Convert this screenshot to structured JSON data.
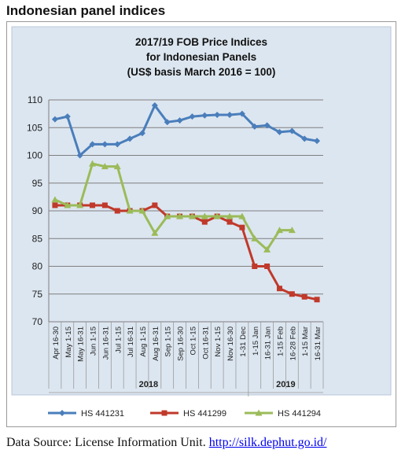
{
  "page_heading": "Indonesian panel indices",
  "source": {
    "label": "Data Source: License Information Unit.",
    "url_text": "http://silk.dephut.go.id/"
  },
  "chart_data": {
    "type": "line",
    "title_lines": [
      "2017/19 FOB Price Indices",
      "for Indonesian Panels",
      "(US$ basis March 2016 = 100)"
    ],
    "categories": [
      "Apr 16-30",
      "May 1-15",
      "May 16-31",
      "Jun 1-15",
      "Jun 16-31",
      "Jul 1-15",
      "Jul 16-31",
      "Aug 1-15",
      "Aug 16-31",
      "Sep 1-15",
      "Sep 16-30",
      "Oct 1-15",
      "Oct 16-31",
      "Nov 1-15",
      "Nov 16-30",
      "1-31 Dec",
      "1-15 Jan",
      "16-31 Jan",
      "1-15 Feb",
      "16-28 Feb",
      "1-15 Mar",
      "16-31 Mar"
    ],
    "year_groups": [
      {
        "label": "2018",
        "start": 0,
        "end": 15
      },
      {
        "label": "2019",
        "start": 16,
        "end": 21
      }
    ],
    "ylim": [
      70,
      110
    ],
    "yticks": [
      70,
      75,
      80,
      85,
      90,
      95,
      100,
      105,
      110
    ],
    "grid": "horizontal",
    "legend_position": "bottom",
    "colors": {
      "HS 441231": "#4a7ebb",
      "HS 441299": "#c0392b",
      "HS 441294": "#9bbb59"
    },
    "series": [
      {
        "name": "HS 441231",
        "marker": "diamond",
        "values": [
          106.5,
          107,
          100,
          102,
          102,
          102,
          103,
          104,
          109,
          106,
          106.3,
          107,
          107.2,
          107.3,
          107.3,
          107.5,
          105.2,
          105.4,
          104.2,
          104.4,
          103,
          102.6
        ]
      },
      {
        "name": "HS 441299",
        "marker": "square",
        "values": [
          91,
          91,
          91,
          91,
          91,
          90,
          90,
          90,
          91,
          89,
          89,
          89,
          88,
          89,
          88,
          87,
          80,
          80,
          76,
          75,
          74.5,
          74
        ]
      },
      {
        "name": "HS 441294",
        "marker": "triangle",
        "values": [
          92,
          91,
          91,
          98.5,
          98,
          98,
          90,
          90,
          86,
          89,
          89,
          89,
          89,
          89,
          89,
          89,
          85,
          83,
          86.5,
          86.5,
          null,
          null
        ]
      }
    ]
  }
}
